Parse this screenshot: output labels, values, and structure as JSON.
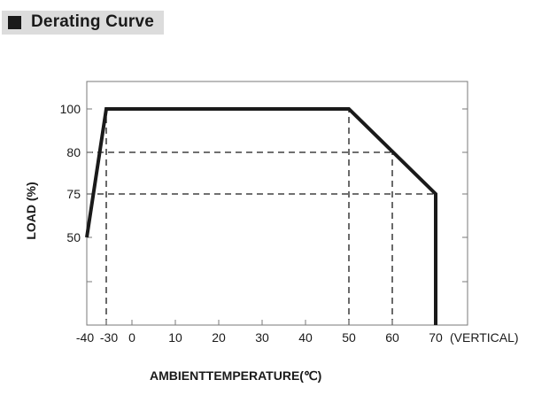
{
  "header": {
    "title": "Derating Curve"
  },
  "chart_data": {
    "type": "line",
    "title": "Derating Curve",
    "xlabel": "AMBIENTTEMPERATURE(℃)",
    "ylabel": "LOAD (%)",
    "x_ticks": [
      -40,
      -30,
      0,
      10,
      20,
      30,
      40,
      50,
      60,
      70
    ],
    "x_tick_labels": [
      "-40",
      "-30",
      "0",
      "10",
      "20",
      "30",
      "40",
      "50",
      "60",
      "70"
    ],
    "x_suffix": "(VERTICAL)",
    "y_ticks": [
      50,
      75,
      80,
      100
    ],
    "y_tick_labels": [
      "50",
      "75",
      "80",
      "100"
    ],
    "series": [
      {
        "x": [
          -40,
          -30,
          50,
          70,
          70
        ],
        "y": [
          50,
          100,
          100,
          75,
          0
        ]
      }
    ],
    "reference_lines": [
      {
        "x": [
          -30,
          -30
        ],
        "y": [
          0,
          100
        ]
      },
      {
        "x": [
          50,
          50
        ],
        "y": [
          0,
          100
        ]
      },
      {
        "x": [
          60,
          60
        ],
        "y": [
          0,
          80
        ]
      },
      {
        "x": [
          -40,
          60
        ],
        "y": [
          80,
          80
        ]
      },
      {
        "x": [
          -40,
          70
        ],
        "y": [
          75,
          75
        ]
      }
    ],
    "grid": false,
    "legend": "none"
  }
}
